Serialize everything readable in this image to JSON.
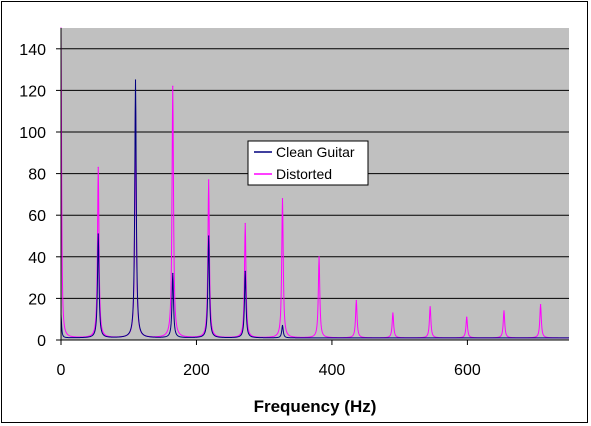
{
  "chart_data": {
    "type": "line",
    "title": "",
    "xlabel": "Frequency (Hz)",
    "ylabel": "",
    "xlim": [
      0,
      750
    ],
    "ylim": [
      0,
      150
    ],
    "xticks": [
      0,
      200,
      400,
      600
    ],
    "xtick_labels": [
      "0",
      "200",
      "400",
      "600"
    ],
    "yticks": [
      0,
      20,
      40,
      60,
      80,
      100,
      120,
      140
    ],
    "ytick_labels": [
      "0",
      "20",
      "40",
      "60",
      "80",
      "100",
      "120",
      "140"
    ],
    "grid": "horizontal",
    "plot_background": "#c0c0c0",
    "legend_position": "center",
    "series": [
      {
        "name": "Clean Guitar",
        "color": "#00007f",
        "peaks": [
          {
            "x": 0,
            "y": 11
          },
          {
            "x": 55,
            "y": 50
          },
          {
            "x": 110,
            "y": 124
          },
          {
            "x": 165,
            "y": 31
          },
          {
            "x": 218,
            "y": 49
          },
          {
            "x": 272,
            "y": 32
          },
          {
            "x": 327,
            "y": 6
          }
        ]
      },
      {
        "name": "Distorted",
        "color": "#ff00ff",
        "peaks": [
          {
            "x": 0,
            "y": 150
          },
          {
            "x": 55,
            "y": 82
          },
          {
            "x": 110,
            "y": 112
          },
          {
            "x": 165,
            "y": 121
          },
          {
            "x": 218,
            "y": 76
          },
          {
            "x": 272,
            "y": 55
          },
          {
            "x": 327,
            "y": 67
          },
          {
            "x": 381,
            "y": 39
          },
          {
            "x": 436,
            "y": 18
          },
          {
            "x": 490,
            "y": 12
          },
          {
            "x": 545,
            "y": 15
          },
          {
            "x": 599,
            "y": 10
          },
          {
            "x": 654,
            "y": 13
          },
          {
            "x": 708,
            "y": 16
          }
        ]
      }
    ]
  }
}
